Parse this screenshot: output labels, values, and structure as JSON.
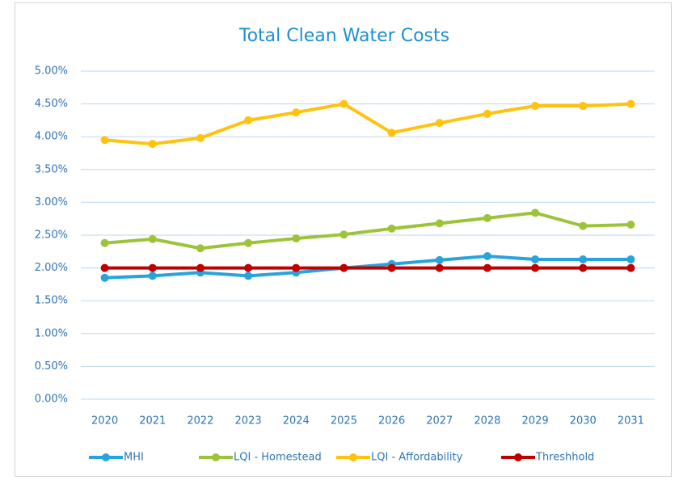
{
  "chart_data": {
    "type": "line",
    "title": "Total Clean Water Costs",
    "categories": [
      "2020",
      "2021",
      "2022",
      "2023",
      "2024",
      "2025",
      "2026",
      "2027",
      "2028",
      "2029",
      "2030",
      "2031"
    ],
    "series": [
      {
        "name": "MHI",
        "color": "#29a3dc",
        "values": [
          1.85,
          1.88,
          1.93,
          1.88,
          1.93,
          2.0,
          2.06,
          2.12,
          2.18,
          2.13,
          2.13,
          2.13
        ]
      },
      {
        "name": "LQI - Homestead",
        "color": "#9dc33b",
        "values": [
          2.38,
          2.44,
          2.3,
          2.38,
          2.45,
          2.51,
          2.6,
          2.68,
          2.76,
          2.84,
          2.64,
          2.66
        ]
      },
      {
        "name": "LQI - Affordability",
        "color": "#ffc20e",
        "values": [
          3.95,
          3.89,
          3.98,
          4.25,
          4.37,
          4.5,
          4.06,
          4.21,
          4.35,
          4.47,
          4.47,
          4.5
        ]
      },
      {
        "name": "Threshhold",
        "color": "#c00000",
        "values": [
          2.0,
          2.0,
          2.0,
          2.0,
          2.0,
          2.0,
          2.0,
          2.0,
          2.0,
          2.0,
          2.0,
          2.0
        ]
      }
    ],
    "ylim": [
      0,
      5
    ],
    "yticks": [
      {
        "value": 0,
        "label": "0.00%"
      },
      {
        "value": 0.5,
        "label": "0.50%"
      },
      {
        "value": 1,
        "label": "1.00%"
      },
      {
        "value": 1.5,
        "label": "1.50%"
      },
      {
        "value": 2,
        "label": "2.00%"
      },
      {
        "value": 2.5,
        "label": "2.50%"
      },
      {
        "value": 3,
        "label": "3.00%"
      },
      {
        "value": 3.5,
        "label": "3.50%"
      },
      {
        "value": 4,
        "label": "4.00%"
      },
      {
        "value": 4.5,
        "label": "4.50%"
      },
      {
        "value": 5,
        "label": "5.00%"
      }
    ],
    "grid": true,
    "legend": "bottom"
  }
}
